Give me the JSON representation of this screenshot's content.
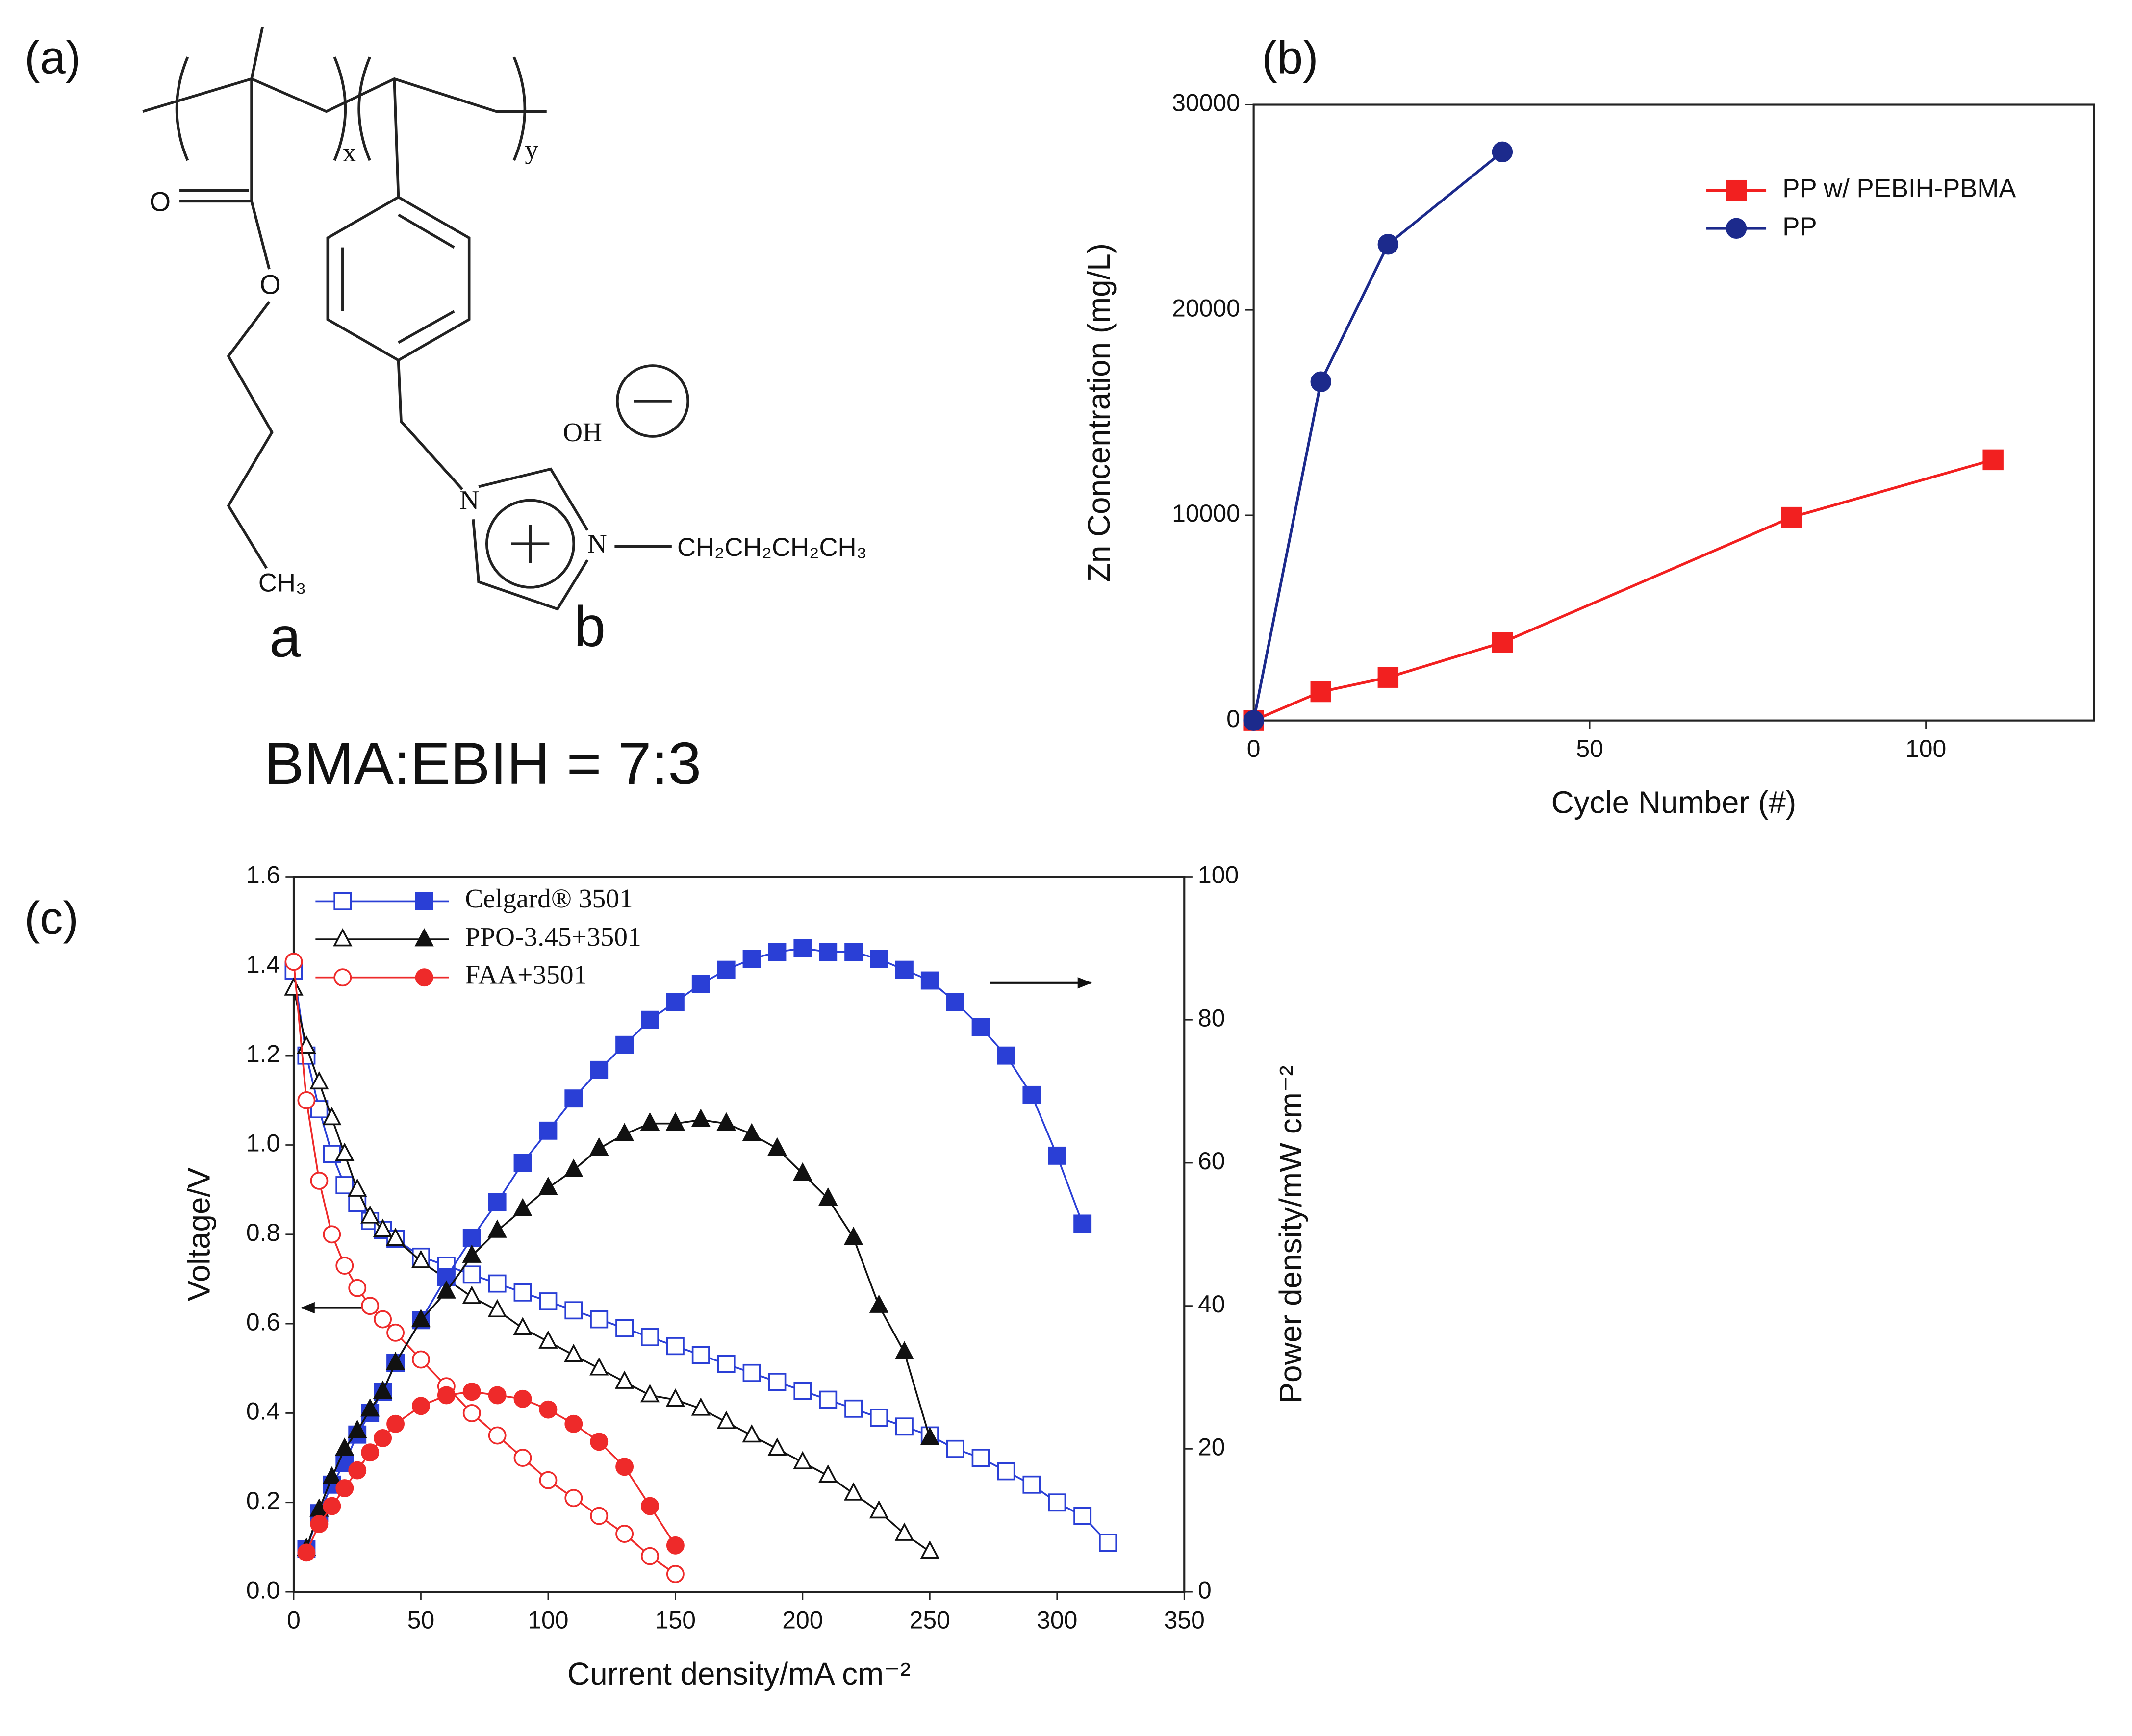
{
  "figure": {
    "panel_labels": [
      "(a)",
      "(b)",
      "(c)"
    ],
    "structure": {
      "subscripts": [
        "x",
        "y"
      ],
      "atoms": [
        "O",
        "O",
        "CH₃",
        "N",
        "N",
        "CH₂CH₂CH₂CH₃",
        "OH"
      ],
      "unit_labels": [
        "a",
        "b"
      ],
      "ratio": "BMA:EBIH = 7:3"
    }
  },
  "chart_data": [
    {
      "type": "line",
      "x_label": "Cycle Number (#)",
      "y_label": "Zn Concentration (mg/L)",
      "xlim": [
        0,
        125
      ],
      "xticks": [
        0,
        50,
        100
      ],
      "ylim": [
        0,
        30000
      ],
      "yticks": [
        0,
        10000,
        20000,
        30000
      ],
      "legend": "upper right",
      "series": [
        {
          "name": "PP w/ PEBIH-PBMA",
          "color": "#f22020",
          "marker": "square",
          "filled": true,
          "x": [
            0,
            10,
            20,
            37,
            80,
            110
          ],
          "values": [
            0,
            1400,
            2100,
            3800,
            9900,
            12700
          ]
        },
        {
          "name": "PP",
          "color": "#1c2a8c",
          "marker": "circle",
          "filled": true,
          "x": [
            0,
            10,
            20,
            37
          ],
          "values": [
            0,
            16500,
            23200,
            27700
          ]
        }
      ]
    },
    {
      "type": "line",
      "x_label": "Current density/mA cm⁻²",
      "y_label": "Voltage/V",
      "y2_label": "Power density/mW cm⁻²",
      "xlim": [
        0,
        350
      ],
      "xticks": [
        0,
        50,
        100,
        150,
        200,
        250,
        300,
        350
      ],
      "ylim": [
        0,
        1.6
      ],
      "yticks": [
        {
          "value": 0,
          "label": "0.0"
        },
        0.2,
        0.4,
        0.6,
        0.8,
        {
          "value": 1,
          "label": "1.0"
        },
        1.2,
        1.4,
        1.6
      ],
      "y2lim": [
        0,
        100
      ],
      "y2ticks": [
        0,
        20,
        40,
        60,
        80,
        100
      ],
      "legend": "upper left",
      "series": [
        {
          "name": "Celgard® 3501",
          "color": "#2a3fd6",
          "marker": "square",
          "filled": false,
          "x": [
            0,
            5,
            10,
            15,
            20,
            25,
            30,
            35,
            40,
            50,
            60,
            70,
            80,
            90,
            100,
            110,
            120,
            130,
            140,
            150,
            160,
            170,
            180,
            190,
            200,
            210,
            220,
            230,
            240,
            250,
            260,
            270,
            280,
            290,
            300,
            310,
            320
          ],
          "values": [
            1.39,
            1.2,
            1.08,
            0.98,
            0.91,
            0.87,
            0.83,
            0.81,
            0.79,
            0.75,
            0.73,
            0.71,
            0.69,
            0.67,
            0.65,
            0.63,
            0.61,
            0.59,
            0.57,
            0.55,
            0.53,
            0.51,
            0.49,
            0.47,
            0.45,
            0.43,
            0.41,
            0.39,
            0.37,
            0.35,
            0.32,
            0.3,
            0.27,
            0.24,
            0.2,
            0.17,
            0.11
          ]
        },
        {
          "name": "PPO-3.45+3501",
          "color": "#111111",
          "marker": "triangle",
          "filled": false,
          "x": [
            0,
            5,
            10,
            15,
            20,
            25,
            30,
            35,
            40,
            50,
            60,
            70,
            80,
            90,
            100,
            110,
            120,
            130,
            140,
            150,
            160,
            170,
            180,
            190,
            200,
            210,
            220,
            230,
            240,
            250
          ],
          "values": [
            1.35,
            1.22,
            1.14,
            1.06,
            0.98,
            0.9,
            0.84,
            0.81,
            0.79,
            0.74,
            0.7,
            0.66,
            0.63,
            0.59,
            0.56,
            0.53,
            0.5,
            0.47,
            0.44,
            0.43,
            0.41,
            0.38,
            0.35,
            0.32,
            0.29,
            0.26,
            0.22,
            0.18,
            0.13,
            0.09
          ]
        },
        {
          "name": "FAA+3501",
          "color": "#ee2a2a",
          "marker": "circle",
          "filled": false,
          "x": [
            0,
            5,
            10,
            15,
            20,
            25,
            30,
            35,
            40,
            50,
            60,
            70,
            80,
            90,
            100,
            110,
            120,
            130,
            140,
            150
          ],
          "values": [
            1.41,
            1.1,
            0.92,
            0.8,
            0.73,
            0.68,
            0.64,
            0.61,
            0.58,
            0.52,
            0.46,
            0.4,
            0.35,
            0.3,
            0.25,
            0.21,
            0.17,
            0.13,
            0.08,
            0.04
          ]
        },
        {
          "color": "#2a3fd6",
          "marker": "square",
          "filled": true,
          "axis": "y2",
          "x": [
            5,
            10,
            15,
            20,
            25,
            30,
            35,
            40,
            50,
            60,
            70,
            80,
            90,
            100,
            110,
            120,
            130,
            140,
            150,
            160,
            170,
            180,
            190,
            200,
            210,
            220,
            230,
            240,
            250,
            260,
            270,
            280,
            290,
            300,
            310
          ],
          "values": [
            6,
            11,
            15,
            18,
            22,
            25,
            28,
            32,
            38,
            44,
            49.5,
            54.5,
            60,
            64.5,
            69,
            73,
            76.5,
            80,
            82.5,
            85,
            87,
            88.5,
            89.5,
            90,
            89.5,
            89.5,
            88.5,
            87,
            85.5,
            82.5,
            79,
            75,
            69.5,
            61,
            51.5
          ]
        },
        {
          "color": "#111111",
          "marker": "triangle",
          "filled": true,
          "axis": "y2",
          "x": [
            5,
            10,
            15,
            20,
            25,
            30,
            35,
            40,
            50,
            60,
            70,
            80,
            90,
            100,
            110,
            120,
            130,
            140,
            150,
            160,
            170,
            180,
            190,
            200,
            210,
            220,
            230,
            240,
            250
          ],
          "values": [
            6,
            11.5,
            16,
            20,
            22.5,
            25.5,
            28,
            32,
            38,
            42,
            47,
            50.5,
            53.5,
            56.5,
            59,
            62,
            64,
            65.5,
            65.5,
            66,
            65.5,
            64,
            62,
            58.5,
            55,
            49.5,
            40,
            33.5,
            21.5
          ]
        },
        {
          "color": "#ee2a2a",
          "marker": "circle",
          "filled": true,
          "axis": "y2",
          "x": [
            5,
            10,
            15,
            20,
            25,
            30,
            35,
            40,
            50,
            60,
            70,
            80,
            90,
            100,
            110,
            120,
            130,
            140,
            150
          ],
          "values": [
            5.5,
            9.5,
            12,
            14.5,
            17,
            19.5,
            21.5,
            23.5,
            26,
            27.5,
            28,
            27.5,
            27,
            25.5,
            23.5,
            21,
            17.5,
            12,
            6.5
          ]
        }
      ]
    }
  ]
}
